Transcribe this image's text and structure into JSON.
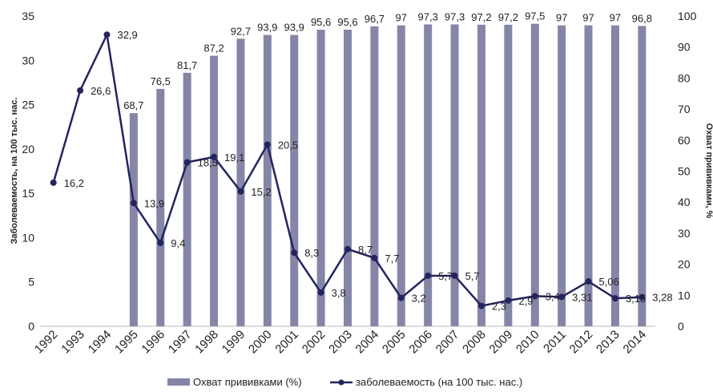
{
  "chart_data": {
    "type": "bar+line",
    "categories": [
      "1992",
      "1993",
      "1994",
      "1995",
      "1996",
      "1997",
      "1998",
      "1999",
      "2000",
      "2001",
      "2002",
      "2003",
      "2004",
      "2005",
      "2006",
      "2007",
      "2008",
      "2009",
      "2010",
      "2011",
      "2012",
      "2013",
      "2014"
    ],
    "series": [
      {
        "name": "Охват прививками (%)",
        "type": "bar",
        "axis": "right",
        "values": [
          null,
          null,
          null,
          68.7,
          76.5,
          81.7,
          87.2,
          92.7,
          93.9,
          93.9,
          95.6,
          95.6,
          96.7,
          97,
          97.3,
          97.3,
          97.2,
          97.2,
          97.5,
          97,
          97,
          97,
          96.8
        ],
        "labels": [
          "",
          "",
          "",
          "68,7",
          "76,5",
          "81,7",
          "87,2",
          "92,7",
          "93,9",
          "93,9",
          "95,6",
          "95,6",
          "96,7",
          "97",
          "97,3",
          "97,3",
          "97,2",
          "97,2",
          "97,5",
          "97",
          "97",
          "97",
          "96,8"
        ],
        "color": "#8585a8"
      },
      {
        "name": "заболеваемость (на 100 тыс. нас.)",
        "type": "line",
        "axis": "left",
        "values": [
          16.2,
          26.6,
          32.9,
          13.9,
          9.4,
          18.5,
          19.1,
          15.2,
          20.5,
          8.3,
          3.8,
          8.7,
          7.7,
          3.2,
          5.7,
          5.7,
          2.3,
          2.9,
          3.4,
          3.31,
          5.06,
          3.15,
          3.28
        ],
        "labels": [
          "16,2",
          "26,6",
          "32,9",
          "13,9",
          "9,4",
          "18,5",
          "19,1",
          "15,2",
          "20,5",
          "8,3",
          "3,8",
          "8,7",
          "7,7",
          "3,2",
          "5,7",
          "5,7",
          "2,3",
          "2,9",
          "3,4",
          "3,31",
          "5,06",
          "3,15",
          "3,28"
        ],
        "color": "#24245e"
      }
    ],
    "ylabel_left": "Заболеваемость, на 100 тыс. нас.",
    "ylabel_right": "Охват прививками, %",
    "ylim_left": [
      0,
      35
    ],
    "ylim_right": [
      0,
      100
    ],
    "yticks_left": [
      "0",
      "5",
      "10",
      "15",
      "20",
      "25",
      "30",
      "35"
    ],
    "yticks_right": [
      "0",
      "10",
      "20",
      "30",
      "40",
      "50",
      "60",
      "70",
      "80",
      "90",
      "100"
    ],
    "legend": {
      "position": "bottom",
      "bar_label": "Охват прививками (%)",
      "line_label": "заболеваемость (на 100 тыс. нас.)"
    },
    "grid": false
  }
}
